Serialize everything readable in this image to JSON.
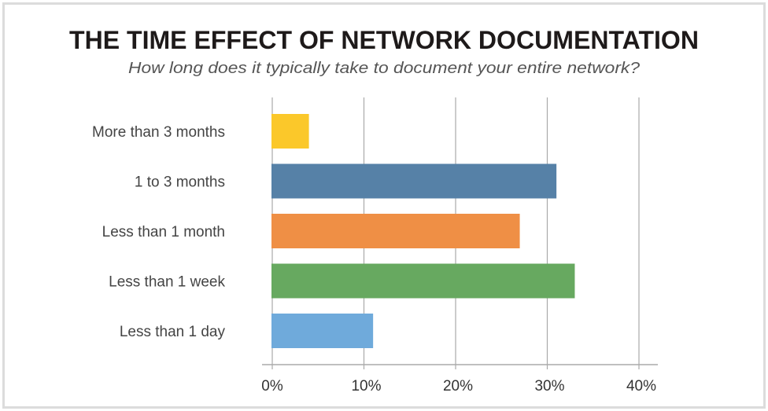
{
  "chart_data": {
    "type": "bar",
    "orientation": "horizontal",
    "title": "THE TIME EFFECT OF NETWORK DOCUMENTATION",
    "subtitle": "How long does it typically take to document your entire network?",
    "categories": [
      "More than 3 months",
      "1 to 3 months",
      "Less than 1 month",
      "Less than 1 week",
      "Less than 1 day"
    ],
    "values": [
      4,
      31,
      27,
      33,
      11
    ],
    "colors": [
      "#fbc82a",
      "#5681a7",
      "#ef8f45",
      "#67a960",
      "#6faadb"
    ],
    "xlim": [
      0,
      40
    ],
    "xticks": [
      "0%",
      "10%",
      "20%",
      "30%",
      "40%"
    ],
    "xlabel": "",
    "ylabel": "",
    "grid": "vertical",
    "legend": "none"
  }
}
